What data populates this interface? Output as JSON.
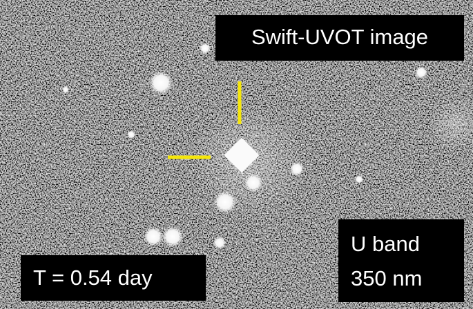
{
  "image": {
    "title": "Swift-UVOT image",
    "band": "U band",
    "wavelength": "350 nm",
    "time": "T = 0.54 day"
  }
}
